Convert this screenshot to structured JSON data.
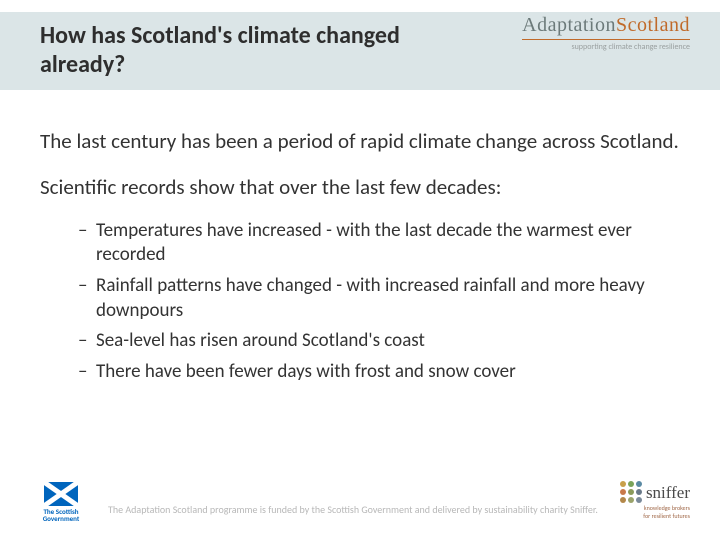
{
  "header": {
    "title": "How has Scotland's climate changed already?"
  },
  "logo_top": {
    "brand_a": "Adaptation",
    "brand_b": "Scotland",
    "tagline": "supporting climate change resilience"
  },
  "body": {
    "para1": "The last century has been a period of rapid climate change across Scotland.",
    "para2": "Scientific records show that over the last few decades:",
    "bullets": [
      "Temperatures have increased - with the last decade the warmest ever recorded",
      " Rainfall patterns have changed - with increased rainfall and more heavy downpours",
      " Sea-level has risen around Scotland's coast",
      " There have been fewer days with frost and snow cover"
    ]
  },
  "footer": {
    "text": "The Adaptation Scotland programme is funded by the Scottish Government and delivered by sustainability charity Sniffer.",
    "gov_logo": {
      "line1": "The Scottish",
      "line2": "Government"
    },
    "sniffer": {
      "word": "sniffer",
      "tag1": "knowledge brokers",
      "tag2": "for resilient futures",
      "dot_colors": [
        "#c9a04a",
        "#7aa35a",
        "#5a8aa3",
        "#c97a4a",
        "#8a9a5a",
        "#6a7a8a",
        "#b3884a",
        "#9aa36a",
        "#7a8a9a"
      ]
    }
  },
  "colors": {
    "header_band": "#dbe5e7",
    "accent_orange": "#c06a2a",
    "brand_grey": "#6c7a7a",
    "saltire_blue": "#0065bd"
  }
}
